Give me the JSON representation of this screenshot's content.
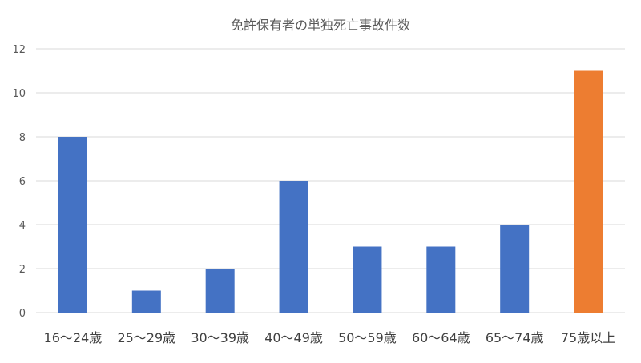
{
  "chart_data": {
    "type": "bar",
    "title": "免許保有者の単独死亡事故件数",
    "xlabel": "",
    "ylabel": "",
    "categories": [
      "16〜24歳",
      "25〜29歳",
      "30〜39歳",
      "40〜49歳",
      "50〜59歳",
      "60〜64歳",
      "65〜74歳",
      "75歳以上"
    ],
    "values": [
      8,
      1,
      2,
      6,
      3,
      3,
      4,
      11
    ],
    "bar_colors": [
      "#4472c4",
      "#4472c4",
      "#4472c4",
      "#4472c4",
      "#4472c4",
      "#4472c4",
      "#4472c4",
      "#ed7d31"
    ],
    "ylim": [
      0,
      12
    ],
    "yticks": [
      0,
      2,
      4,
      6,
      8,
      10,
      12
    ],
    "grid": true,
    "legend": "none"
  }
}
